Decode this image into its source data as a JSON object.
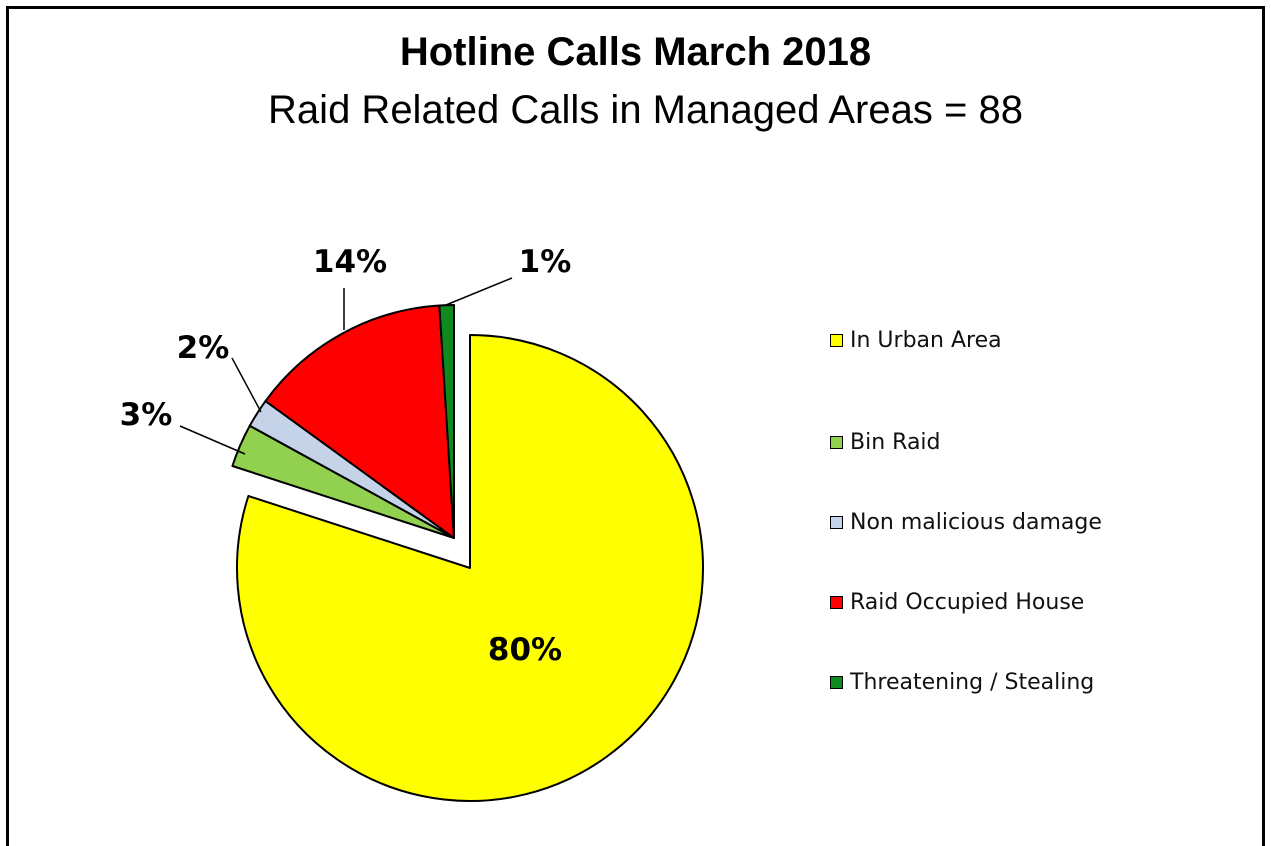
{
  "chart_data": {
    "type": "pie",
    "title": "Hotline Calls March 2018",
    "subtitle": "Raid Related Calls in Managed Areas  = 88",
    "slices": [
      {
        "label": "In Urban Area",
        "value": 80,
        "display": "80%",
        "color": "#FFFF00",
        "exploded": false
      },
      {
        "label": "Bin Raid",
        "value": 3,
        "display": "3%",
        "color": "#92D050",
        "exploded": true
      },
      {
        "label": "Non malicious damage",
        "value": 2,
        "display": "2%",
        "color": "#C5D3E8",
        "exploded": true
      },
      {
        "label": "Raid Occupied House",
        "value": 14,
        "display": "14%",
        "color": "#FF0000",
        "exploded": true
      },
      {
        "label": "Threatening / Stealing",
        "value": 1,
        "display": "1%",
        "color": "#0E8A1E",
        "exploded": true
      }
    ],
    "legend_position": "right"
  }
}
